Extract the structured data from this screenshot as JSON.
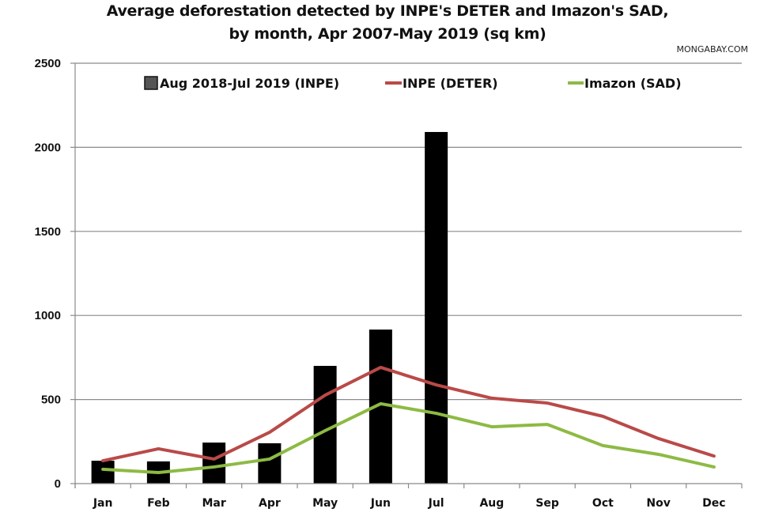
{
  "header": {
    "title_line1": "Average deforestation detected by INPE's DETER and Imazon's SAD,",
    "title_line2": "by month, Apr 2007-May 2019 (sq km)",
    "credit": "MONGABAY.COM"
  },
  "chart_data": {
    "type": "bar",
    "title": "Average deforestation detected by INPE's DETER and Imazon's SAD, by month, Apr 2007-May 2019 (sq km)",
    "xlabel": "",
    "ylabel": "",
    "ylim": [
      0,
      2500
    ],
    "yticks": [
      0,
      500,
      1000,
      1500,
      2000,
      2500
    ],
    "grid": true,
    "legend_position": "top",
    "categories": [
      "Jan",
      "Feb",
      "Mar",
      "Apr",
      "May",
      "Jun",
      "Jul",
      "Aug",
      "Sep",
      "Oct",
      "Nov",
      "Dec"
    ],
    "series": [
      {
        "name": "Aug 2018-Jul 2019 (INPE)",
        "type": "bar",
        "color": "#000000",
        "legend_swatch_color": "#555555",
        "values": [
          136,
          132,
          244,
          240,
          700,
          916,
          2091,
          null,
          null,
          null,
          null,
          null
        ]
      },
      {
        "name": "INPE (DETER)",
        "type": "line",
        "color": "#b94a48",
        "values": [
          136,
          207,
          146,
          305,
          526,
          691,
          587,
          508,
          479,
          400,
          268,
          164
        ]
      },
      {
        "name": "Imazon (SAD)",
        "type": "line",
        "color": "#8dba44",
        "values": [
          85,
          66,
          99,
          146,
          315,
          475,
          418,
          338,
          352,
          226,
          174,
          99
        ]
      }
    ]
  }
}
